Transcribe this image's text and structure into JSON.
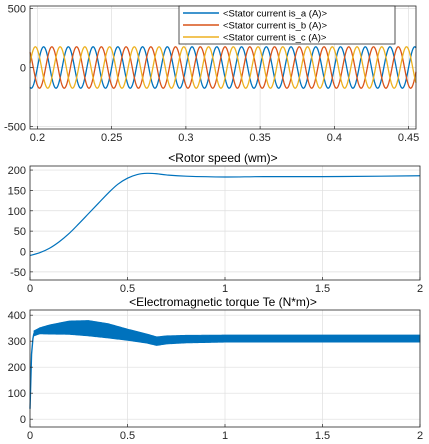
{
  "chart_data": [
    {
      "type": "line",
      "title": "",
      "xlabel": "",
      "ylabel": "",
      "xlim": [
        0.195,
        0.455
      ],
      "ylim": [
        -520,
        520
      ],
      "x_ticks": [
        0.2,
        0.25,
        0.3,
        0.35,
        0.4,
        0.45
      ],
      "y_ticks": [
        -500,
        0,
        500
      ],
      "grid": true,
      "legend": "top-right",
      "frequency_hz": 60,
      "amplitude": 175,
      "series": [
        {
          "name": "<Stator current is_a (A)>",
          "color": "#0072bd",
          "phase_deg": 0,
          "amplitude": 175
        },
        {
          "name": "<Stator current is_b (A)>",
          "color": "#d95319",
          "phase_deg": -120,
          "amplitude": 175
        },
        {
          "name": "<Stator current is_c (A)>",
          "color": "#edb120",
          "phase_deg": 120,
          "amplitude": 175
        }
      ]
    },
    {
      "type": "line",
      "title": "<Rotor speed (wm)>",
      "xlabel": "",
      "ylabel": "",
      "xlim": [
        0,
        2
      ],
      "ylim": [
        -70,
        210
      ],
      "x_ticks": [
        0,
        0.5,
        1,
        1.5,
        2
      ],
      "y_ticks": [
        -50,
        0,
        50,
        100,
        150,
        200
      ],
      "grid": true,
      "series": [
        {
          "color": "#0072bd",
          "x": [
            0,
            0.05,
            0.1,
            0.15,
            0.2,
            0.25,
            0.3,
            0.35,
            0.4,
            0.45,
            0.5,
            0.55,
            0.6,
            0.65,
            0.7,
            0.8,
            1.0,
            1.2,
            1.5,
            1.8,
            2.0
          ],
          "y": [
            -10,
            -3,
            8,
            24,
            44,
            68,
            93,
            118,
            143,
            165,
            180,
            189,
            192,
            191,
            188,
            185,
            183,
            184,
            184,
            185,
            186
          ]
        }
      ]
    },
    {
      "type": "line",
      "title": "<Electromagnetic torque Te (N*m)>",
      "xlabel": "",
      "ylabel": "",
      "xlim": [
        0,
        2
      ],
      "ylim": [
        -30,
        420
      ],
      "x_ticks": [
        0,
        0.5,
        1,
        1.5,
        2
      ],
      "y_ticks": [
        0,
        100,
        200,
        300,
        400
      ],
      "grid": true,
      "series": [
        {
          "color": "#0072bd",
          "x": [
            0,
            0.02,
            0.05,
            0.1,
            0.2,
            0.3,
            0.4,
            0.5,
            0.6,
            0.65,
            0.7,
            0.8,
            1.0,
            1.5,
            2.0
          ],
          "y_center": [
            40,
            330,
            340,
            345,
            352,
            350,
            340,
            325,
            310,
            300,
            305,
            308,
            310,
            310,
            310
          ],
          "y_band": [
            0,
            10,
            12,
            18,
            26,
            30,
            28,
            22,
            18,
            17,
            16,
            15,
            14,
            14,
            14
          ]
        }
      ]
    }
  ]
}
